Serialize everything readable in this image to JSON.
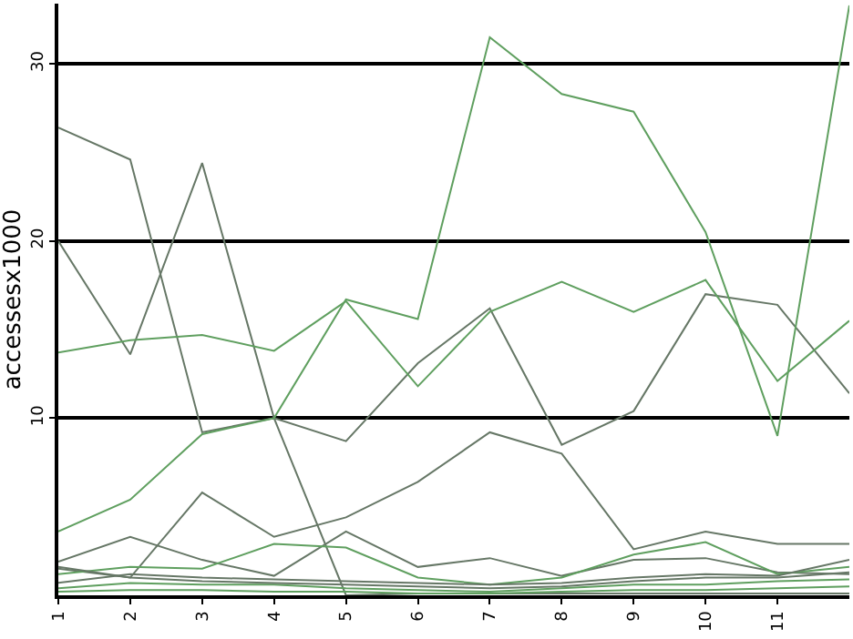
{
  "chart_data": {
    "type": "line",
    "ylabel": "accessesx1000",
    "x": [
      1,
      2,
      3,
      4,
      5,
      6,
      7,
      8,
      9,
      10,
      11,
      12
    ],
    "xlim": [
      1,
      12
    ],
    "xticks": [
      1,
      2,
      3,
      4,
      5,
      6,
      7,
      8,
      9,
      10,
      11
    ],
    "ylim": [
      0,
      33.4
    ],
    "yticks": [
      10,
      20,
      30
    ],
    "grid": "y",
    "marker": "none",
    "line_style": "solid",
    "series": [
      {
        "color": "#667766",
        "values": [
          26.4,
          24.6,
          9.2,
          10,
          8.7,
          13.1,
          16.2,
          8.5,
          10.4,
          17,
          16.4,
          11.4
        ]
      },
      {
        "color": "#667766",
        "values": [
          20,
          13.6,
          24.4,
          10,
          0,
          0.1,
          0.1,
          0.1,
          0.1,
          0.1,
          0.1,
          0.1
        ]
      },
      {
        "color": "#5f9f5f",
        "values": [
          13.7,
          14.4,
          14.7,
          13.8,
          16.6,
          11.8,
          16,
          17.7,
          16,
          17.8,
          12.1,
          15.5
        ]
      },
      {
        "color": "#5f9f5f",
        "values": [
          3.6,
          5.4,
          9.1,
          10,
          16.7,
          15.6,
          31.5,
          28.3,
          27.3,
          20.5,
          9,
          33.3
        ]
      },
      {
        "color": "#667766",
        "values": [
          1.5,
          1,
          5.8,
          3.3,
          4.4,
          6.4,
          9.2,
          8,
          2.6,
          3.6,
          2.9,
          2.9
        ]
      },
      {
        "color": "#667766",
        "values": [
          1.9,
          3.3,
          2,
          1.1,
          3.6,
          1.6,
          2.1,
          1.1,
          2,
          2.1,
          1.3,
          1.2
        ]
      },
      {
        "color": "#5f9f5f",
        "values": [
          1.2,
          1.6,
          1.5,
          2.9,
          2.7,
          1,
          0.6,
          1,
          2.3,
          3,
          1.2,
          1.6
        ]
      },
      {
        "color": "#667766",
        "values": [
          0.7,
          1.2,
          1,
          0.9,
          0.8,
          0.7,
          0.6,
          0.7,
          1,
          1.2,
          1.1,
          2
        ]
      },
      {
        "color": "#5f9f5f",
        "values": [
          0.4,
          0.7,
          0.6,
          0.6,
          0.4,
          0.3,
          0.2,
          0.4,
          0.6,
          0.6,
          0.8,
          0.9
        ]
      },
      {
        "color": "#667766",
        "values": [
          1.6,
          1,
          0.8,
          0.7,
          0.6,
          0.5,
          0.4,
          0.5,
          0.8,
          1,
          1,
          1.3
        ]
      },
      {
        "color": "#5f9f5f",
        "values": [
          0.2,
          0.3,
          0.3,
          0.2,
          0.2,
          0.1,
          0.1,
          0.2,
          0.3,
          0.3,
          0.4,
          0.5
        ]
      }
    ]
  }
}
